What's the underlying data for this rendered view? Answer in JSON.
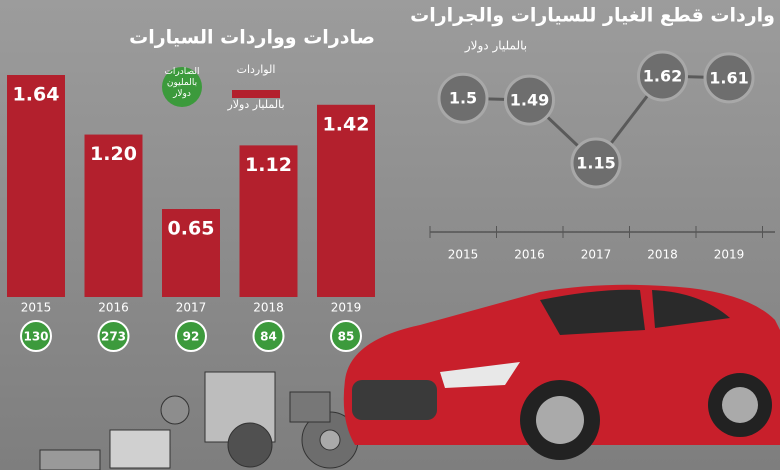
{
  "chart_data": [
    {
      "type": "bar",
      "title": "صادرات وواردات السيارات",
      "categories": [
        "2015",
        "2016",
        "2017",
        "2018",
        "2019"
      ],
      "series": [
        {
          "name": "الواردات",
          "unit": "بالمليار دولار",
          "color": "#b3202d",
          "values": [
            1.64,
            1.2,
            0.65,
            1.12,
            1.42
          ],
          "value_labels": [
            "1.64",
            "1.20",
            "0.65",
            "1.12",
            "1.42"
          ]
        },
        {
          "name": "الصادرات",
          "unit": "بالمليون دولار",
          "color": "#3c9a3c",
          "values": [
            130,
            273,
            92,
            84,
            85
          ]
        }
      ]
    },
    {
      "type": "line",
      "title": "واردات قطع الغيار للسيارات والجرارات",
      "subtitle": "بالمليار دولار",
      "categories": [
        "2015",
        "2016",
        "2017",
        "2018",
        "2019"
      ],
      "color": "#5a5a5a",
      "values": [
        1.5,
        1.49,
        1.15,
        1.62,
        1.61
      ]
    }
  ]
}
